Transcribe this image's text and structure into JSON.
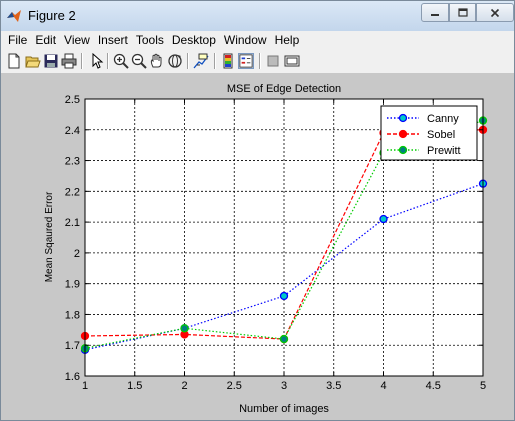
{
  "window": {
    "title": "Figure 2",
    "controls": {
      "minimize": "minimize",
      "maximize": "maximize",
      "close": "close"
    }
  },
  "menu": {
    "items": [
      "File",
      "Edit",
      "View",
      "Insert",
      "Tools",
      "Desktop",
      "Window",
      "Help"
    ]
  },
  "toolbar": {
    "icons": [
      "new-figure-icon",
      "open-file-icon",
      "save-icon",
      "print-icon",
      "pointer-icon",
      "zoom-in-icon",
      "zoom-out-icon",
      "pan-icon",
      "rotate-3d-icon",
      "data-cursor-icon",
      "colorbar-icon",
      "legend-icon",
      "hide-plot-tools-icon",
      "show-plot-tools-icon"
    ]
  },
  "chart_data": {
    "type": "line",
    "title": "MSE of Edge Detection",
    "xlabel": "Number of images",
    "ylabel": "Mean Sqaured Error",
    "x": [
      1,
      2,
      3,
      4,
      5
    ],
    "xlim": [
      1,
      5
    ],
    "ylim": [
      1.6,
      2.5
    ],
    "xticks": [
      "1",
      "1.5",
      "2",
      "2.5",
      "3",
      "3.5",
      "4",
      "4.5",
      "5"
    ],
    "yticks": [
      "1.6",
      "1.7",
      "1.8",
      "1.9",
      "2",
      "2.1",
      "2.2",
      "2.3",
      "2.4",
      "2.5"
    ],
    "grid": true,
    "legend_position": "top-right",
    "series": [
      {
        "name": "Canny",
        "values": [
          1.685,
          1.755,
          1.86,
          2.11,
          2.225
        ],
        "line_color": "#0000ff",
        "marker_edge": "#0000ff",
        "marker_fill": "#00c8c8",
        "style": "dotted"
      },
      {
        "name": "Sobel",
        "values": [
          1.73,
          1.735,
          1.72,
          2.39,
          2.4
        ],
        "line_color": "#ff0000",
        "marker_edge": "#ff0000",
        "marker_fill": "#ff0000",
        "style": "dashed"
      },
      {
        "name": "Prewitt",
        "values": [
          1.69,
          1.755,
          1.72,
          2.325,
          2.43
        ],
        "line_color": "#00cc00",
        "marker_edge": "#00cc00",
        "marker_fill": "#008080",
        "style": "dotted"
      }
    ]
  }
}
